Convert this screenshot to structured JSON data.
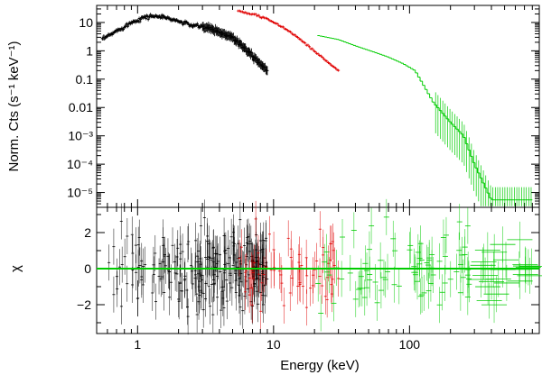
{
  "chart_data": [
    {
      "type": "scatter",
      "panel": "top",
      "xscale": "log",
      "yscale": "log",
      "xlim": [
        0.5,
        900
      ],
      "ylim": [
        3e-06,
        40
      ],
      "ylabel": "Norm. Cts (s⁻¹ keV⁻¹)",
      "xlabel": "",
      "ytick_labels": [
        "10",
        "1",
        "0.1",
        "0.01",
        "10⁻³",
        "10⁻⁴",
        "10⁻⁵"
      ],
      "yticks": [
        10,
        1,
        0.1,
        0.01,
        0.001,
        0.0001,
        1e-05
      ],
      "series": [
        {
          "name": "black",
          "color": "#000000",
          "x": [
            0.55,
            0.7,
            0.9,
            1.1,
            1.3,
            1.6,
            2.0,
            2.5,
            3.0,
            3.5,
            4.0,
            5.0,
            6.0,
            7.0,
            8.0,
            9.0
          ],
          "y": [
            2.5,
            5.0,
            10.0,
            15.0,
            17.0,
            15.0,
            11.0,
            8.0,
            7.0,
            6.0,
            4.5,
            3.0,
            1.4,
            0.7,
            0.35,
            0.2
          ]
        },
        {
          "name": "red",
          "color": "#e00000",
          "x": [
            5.5,
            7.0,
            9.0,
            11.0,
            13.0,
            15.0,
            18.0,
            21.0,
            25.0,
            30.0
          ],
          "y": [
            26.0,
            20.0,
            13.0,
            8.0,
            5.0,
            3.0,
            1.5,
            0.8,
            0.4,
            0.2
          ]
        },
        {
          "name": "green",
          "color": "#00cc00",
          "x": [
            21.0,
            30.0,
            40.0,
            55.0,
            70.0,
            90.0,
            110.0,
            130.0,
            150.0,
            200.0,
            250.0,
            300.0,
            400.0,
            500.0,
            800.0
          ],
          "y": [
            3.5,
            2.5,
            1.5,
            0.9,
            0.6,
            0.35,
            0.2,
            0.05,
            0.015,
            0.003,
            0.001,
            0.0001,
            5.5e-06,
            5.5e-06,
            5.5e-06
          ]
        }
      ]
    },
    {
      "type": "scatter",
      "panel": "bottom",
      "xscale": "log",
      "xlim": [
        0.5,
        900
      ],
      "ylim": [
        -3.6,
        3.4
      ],
      "ylabel": "χ",
      "xlabel": "Energy (keV)",
      "xticks": [
        1,
        10,
        100
      ],
      "xtick_labels": [
        "1",
        "10",
        "100"
      ],
      "yticks": [
        2,
        0,
        -2
      ],
      "ytick_labels": [
        "2",
        "0",
        "−2"
      ],
      "zero_line": {
        "y": 0,
        "color": "#00cc00"
      },
      "residual_ranges": [
        {
          "name": "black",
          "color": "#000000",
          "x_range": [
            0.55,
            9.0
          ]
        },
        {
          "name": "red",
          "color": "#e00000",
          "x_range": [
            5.5,
            30.0
          ]
        },
        {
          "name": "green",
          "color": "#00cc00",
          "x_range": [
            21.0,
            800.0
          ]
        }
      ]
    }
  ]
}
